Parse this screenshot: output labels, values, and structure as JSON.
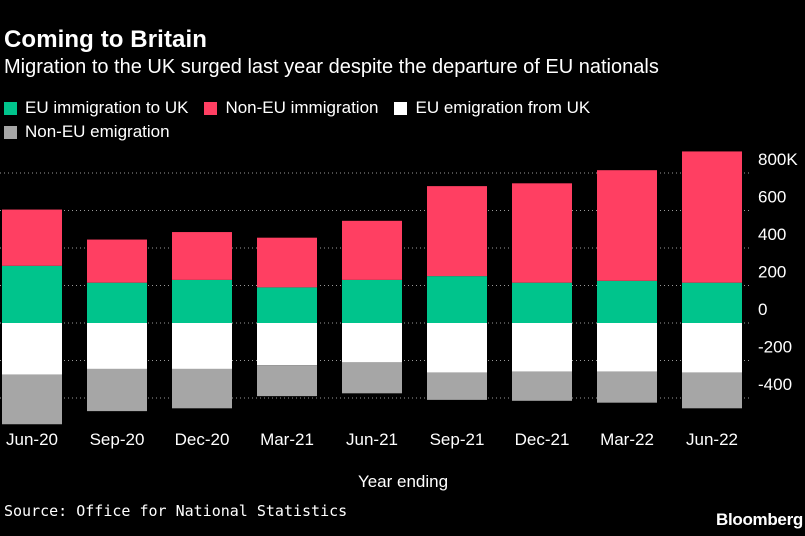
{
  "chart_data": {
    "type": "bar",
    "stacked": true,
    "title": "Coming to Britain",
    "subtitle": "Migration to the UK surged last year despite the departure of EU nationals",
    "xlabel": "Year ending",
    "ylabel": "",
    "categories": [
      "Jun-20",
      "Sep-20",
      "Dec-20",
      "Mar-21",
      "Jun-21",
      "Sep-21",
      "Dec-21",
      "Mar-22",
      "Jun-22"
    ],
    "series": [
      {
        "name": "EU immigration to UK",
        "color": "#00c48c",
        "values": [
          305,
          215,
          230,
          190,
          230,
          250,
          215,
          225,
          215
        ]
      },
      {
        "name": "Non-EU immigration",
        "color": "#ff3f62",
        "values": [
          300,
          230,
          255,
          265,
          315,
          480,
          530,
          590,
          700
        ]
      },
      {
        "name": "EU emigration from UK",
        "color": "#ffffff",
        "values": [
          -275,
          -245,
          -245,
          -225,
          -210,
          -265,
          -260,
          -260,
          -265
        ]
      },
      {
        "name": "Non-EU emigration",
        "color": "#a6a6a6",
        "values": [
          -265,
          -225,
          -210,
          -165,
          -165,
          -145,
          -155,
          -165,
          -190
        ]
      }
    ],
    "y_ticks": [
      800,
      600,
      400,
      200,
      0,
      -200,
      -400
    ],
    "y_tick_labels": [
      "800K",
      "600",
      "400",
      "200",
      "0",
      "-200",
      "-400"
    ],
    "ylim": [
      -520,
      900
    ],
    "grid": "dotted-horizontal",
    "y_axis_side": "right",
    "legend_placement": "top"
  },
  "source": "Source: Office for National Statistics",
  "logo": "Bloomberg"
}
